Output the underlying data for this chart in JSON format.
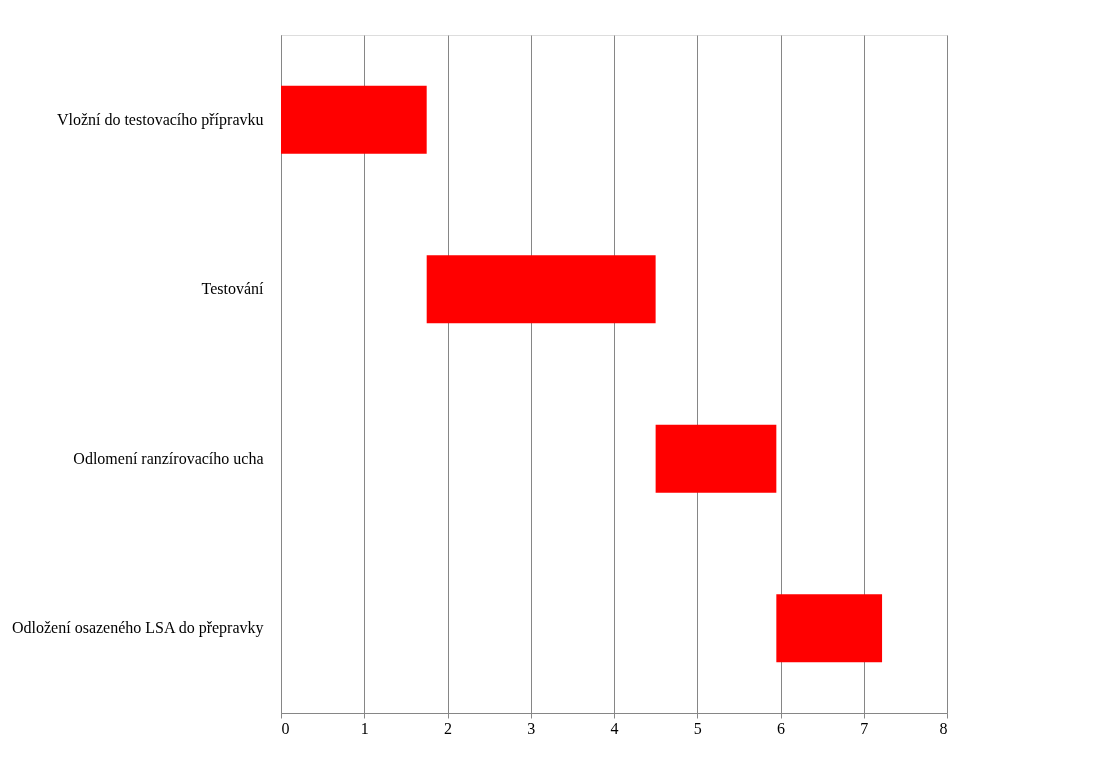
{
  "chart_data": {
    "type": "bar",
    "orientation": "horizontal",
    "categories": [
      "Vložní do testovacího přípravku",
      "Testování",
      "Odlomení ranzírovacího ucha",
      "Odložení osazeného LSA do přepravky"
    ],
    "base": [
      0,
      1.75,
      4.5,
      5.95
    ],
    "values": [
      1.75,
      2.75,
      1.45,
      1.27
    ],
    "color": "#ff0000",
    "xlim": [
      0,
      8
    ],
    "xticks": [
      0,
      1,
      2,
      3,
      4,
      5,
      6,
      7,
      8
    ],
    "grid": "x"
  }
}
